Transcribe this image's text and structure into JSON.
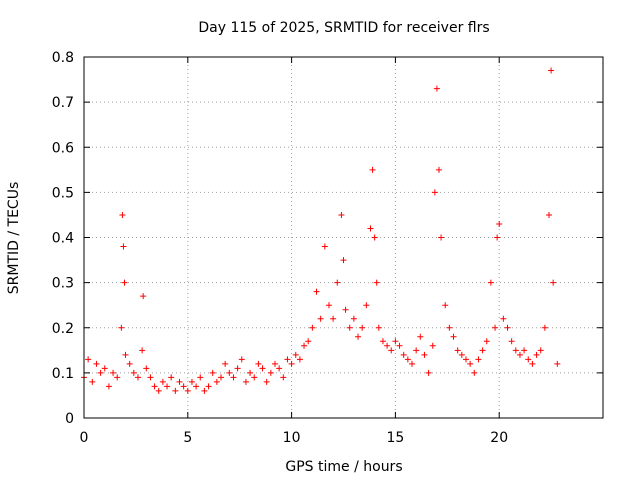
{
  "chart_data": {
    "type": "scatter",
    "title": "Day 115 of 2025, SRMTID for receiver flrs",
    "xlabel": "GPS time / hours",
    "ylabel": "SRMTID / TECUs",
    "xlim": [
      0,
      25
    ],
    "ylim": [
      0,
      0.8
    ],
    "grid": true,
    "marker": "+",
    "color": "#ff0000",
    "x_ticks": [
      0,
      5,
      10,
      15,
      20
    ],
    "x_tick_labels": [
      "0",
      "5",
      "10",
      "15",
      "20"
    ],
    "y_ticks": [
      0,
      0.1,
      0.2,
      0.3,
      0.4,
      0.5,
      0.6,
      0.7,
      0.8
    ],
    "y_tick_labels": [
      "0",
      "0.1",
      "0.2",
      "0.3",
      "0.4",
      "0.5",
      "0.6",
      "0.7",
      "0.8"
    ],
    "series": [
      {
        "name": "SRMTID",
        "x": [
          0.0,
          0.2,
          0.4,
          0.6,
          0.8,
          1.0,
          1.2,
          1.4,
          1.6,
          1.8,
          1.85,
          1.9,
          1.95,
          2.0,
          2.2,
          2.4,
          2.6,
          2.8,
          2.85,
          3.0,
          3.2,
          3.4,
          3.6,
          3.8,
          4.0,
          4.2,
          4.4,
          4.6,
          4.8,
          5.0,
          5.2,
          5.4,
          5.6,
          5.8,
          6.0,
          6.2,
          6.4,
          6.6,
          6.8,
          7.0,
          7.2,
          7.4,
          7.6,
          7.8,
          8.0,
          8.2,
          8.4,
          8.6,
          8.8,
          9.0,
          9.2,
          9.4,
          9.6,
          9.8,
          10.0,
          10.2,
          10.4,
          10.6,
          10.8,
          11.0,
          11.2,
          11.4,
          11.6,
          11.8,
          12.0,
          12.2,
          12.4,
          12.5,
          12.6,
          12.8,
          13.0,
          13.2,
          13.4,
          13.6,
          13.8,
          13.9,
          14.0,
          14.1,
          14.2,
          14.4,
          14.6,
          14.8,
          15.0,
          15.2,
          15.4,
          15.6,
          15.8,
          16.0,
          16.2,
          16.4,
          16.6,
          16.8,
          16.9,
          17.0,
          17.1,
          17.2,
          17.4,
          17.6,
          17.8,
          18.0,
          18.2,
          18.4,
          18.6,
          18.8,
          19.0,
          19.2,
          19.4,
          19.6,
          19.8,
          19.9,
          20.0,
          20.2,
          20.4,
          20.6,
          20.8,
          21.0,
          21.2,
          21.4,
          21.6,
          21.8,
          22.0,
          22.2,
          22.4,
          22.5,
          22.6,
          22.8
        ],
        "y": [
          0.09,
          0.13,
          0.08,
          0.12,
          0.1,
          0.11,
          0.07,
          0.1,
          0.09,
          0.2,
          0.45,
          0.38,
          0.3,
          0.14,
          0.12,
          0.1,
          0.09,
          0.15,
          0.27,
          0.11,
          0.09,
          0.07,
          0.06,
          0.08,
          0.07,
          0.09,
          0.06,
          0.08,
          0.07,
          0.06,
          0.08,
          0.07,
          0.09,
          0.06,
          0.07,
          0.1,
          0.08,
          0.09,
          0.12,
          0.1,
          0.09,
          0.11,
          0.13,
          0.08,
          0.1,
          0.09,
          0.12,
          0.11,
          0.08,
          0.1,
          0.12,
          0.11,
          0.09,
          0.13,
          0.12,
          0.14,
          0.13,
          0.16,
          0.17,
          0.2,
          0.28,
          0.22,
          0.38,
          0.25,
          0.22,
          0.3,
          0.45,
          0.35,
          0.24,
          0.2,
          0.22,
          0.18,
          0.2,
          0.25,
          0.42,
          0.55,
          0.4,
          0.3,
          0.2,
          0.17,
          0.16,
          0.15,
          0.17,
          0.16,
          0.14,
          0.13,
          0.12,
          0.15,
          0.18,
          0.14,
          0.1,
          0.16,
          0.5,
          0.73,
          0.55,
          0.4,
          0.25,
          0.2,
          0.18,
          0.15,
          0.14,
          0.13,
          0.12,
          0.1,
          0.13,
          0.15,
          0.17,
          0.3,
          0.2,
          0.4,
          0.43,
          0.22,
          0.2,
          0.17,
          0.15,
          0.14,
          0.15,
          0.13,
          0.12,
          0.14,
          0.15,
          0.2,
          0.45,
          0.77,
          0.3,
          0.12
        ]
      }
    ]
  }
}
